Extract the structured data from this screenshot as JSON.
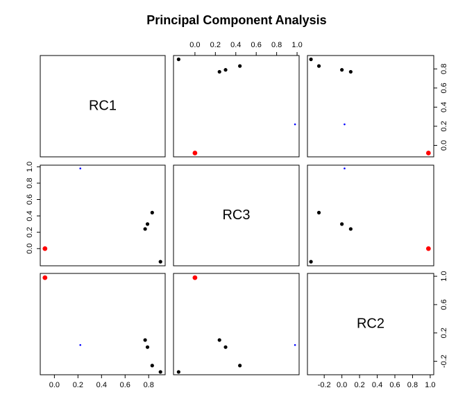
{
  "chart_data": {
    "type": "scatter_matrix",
    "title": "Principal Component Analysis",
    "variables": [
      {
        "name": "RC1",
        "values": [
          -0.08,
          0.22,
          0.77,
          0.79,
          0.83,
          0.9
        ],
        "lim": [
          -0.12,
          0.94
        ],
        "xticks": [
          {
            "value": 0,
            "label": "0.0"
          },
          0.2,
          0.4,
          0.6,
          0.8
        ],
        "yticks": [
          {
            "value": 0,
            "label": "0.0"
          },
          0.2,
          0.4,
          0.6,
          0.8
        ]
      },
      {
        "name": "RC3",
        "values": [
          0,
          0.98,
          0.24,
          0.3,
          0.44,
          -0.16
        ],
        "lim": [
          -0.21,
          1.02
        ],
        "xticks": [
          {
            "value": 0,
            "label": "0.0"
          },
          0.2,
          0.4,
          0.6,
          0.8,
          {
            "value": 1,
            "label": "1.0"
          }
        ],
        "yticks": [
          {
            "value": 0,
            "label": "0.0"
          },
          0.2,
          0.4,
          0.6,
          0.8,
          {
            "value": 1,
            "label": "1.0"
          }
        ]
      },
      {
        "name": "RC2",
        "values": [
          0.98,
          0.03,
          0.1,
          0,
          -0.26,
          -0.35
        ],
        "lim": [
          -0.39,
          1.04
        ],
        "xticks": [
          -0.2,
          {
            "value": 0,
            "label": "0.0"
          },
          0.2,
          0.4,
          0.6,
          0.8,
          {
            "value": 1,
            "label": "1.0"
          }
        ],
        "yticks": [
          -0.2,
          0.2,
          0.6,
          {
            "value": 1,
            "label": "1.0"
          }
        ]
      }
    ],
    "point_colors": [
      "#ff0000",
      "#0000ff",
      "#000000",
      "#000000",
      "#000000",
      "#000000"
    ],
    "point_sizes": [
      1.3,
      0.5,
      1,
      1,
      1,
      1
    ]
  }
}
